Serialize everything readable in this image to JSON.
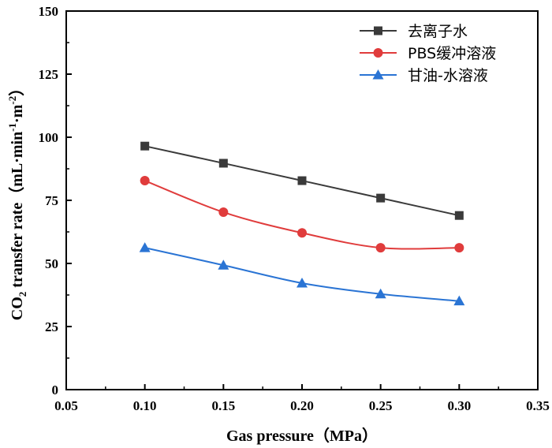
{
  "chart_data": {
    "type": "line",
    "xlabel": "Gas pressure（MPa）",
    "ylabel_prefix": "CO",
    "ylabel_sub": "2",
    "ylabel_main": " transfer rate（mL·min",
    "ylabel_sup1": "-1",
    "ylabel_mid": "·m",
    "ylabel_sup2": "-2",
    "ylabel_end": "）",
    "xlim": [
      0.05,
      0.35
    ],
    "ylim": [
      0,
      150
    ],
    "xticks": [
      "0.05",
      "0.10",
      "0.15",
      "0.20",
      "0.25",
      "0.30",
      "0.35"
    ],
    "yticks": [
      "0",
      "25",
      "50",
      "75",
      "100",
      "125",
      "150"
    ],
    "legend_position": "top-right",
    "grid": false,
    "series": [
      {
        "name": "去离子水",
        "color": "#3a3a3a",
        "marker": "square",
        "x": [
          0.1,
          0.15,
          0.2,
          0.25,
          0.3
        ],
        "y": [
          96.5,
          89.7,
          82.8,
          75.9,
          69.0
        ]
      },
      {
        "name": "PBS缓冲溶液",
        "color": "#e03c3c",
        "marker": "circle",
        "x": [
          0.1,
          0.15,
          0.2,
          0.25,
          0.3
        ],
        "y": [
          82.8,
          70.3,
          62.1,
          56.2,
          56.2
        ]
      },
      {
        "name": "甘油-水溶液",
        "color": "#2a74d4",
        "marker": "triangle",
        "x": [
          0.1,
          0.15,
          0.2,
          0.25,
          0.3
        ],
        "y": [
          56.2,
          49.3,
          42.2,
          37.9,
          35.1
        ]
      }
    ]
  }
}
